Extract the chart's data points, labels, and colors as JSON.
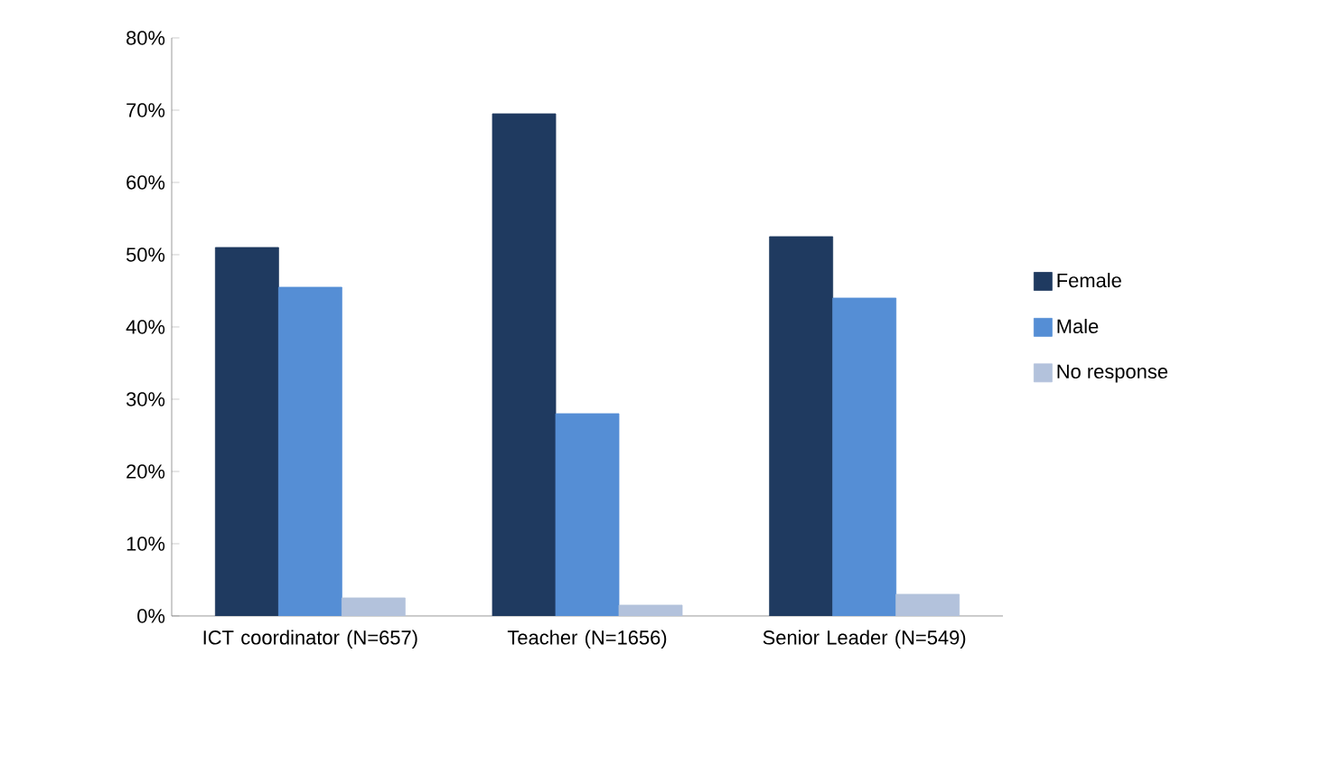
{
  "chart_data": {
    "type": "bar",
    "categories": [
      "ICT coordinator (N=657)",
      "Teacher (N=1656)",
      "Senior Leader (N=549)"
    ],
    "series": [
      {
        "name": "Female",
        "color": "#1f3a60",
        "values": [
          51,
          69.5,
          52.5
        ]
      },
      {
        "name": "Male",
        "color": "#558ed5",
        "values": [
          45.5,
          28,
          44
        ]
      },
      {
        "name": "No response",
        "color": "#b3c2dc",
        "values": [
          2.5,
          1.5,
          3
        ]
      }
    ],
    "ylim": [
      0,
      80
    ],
    "yticks": [
      {
        "value": 0,
        "label": "0%"
      },
      {
        "value": 10,
        "label": "10%"
      },
      {
        "value": 20,
        "label": "20%"
      },
      {
        "value": 30,
        "label": "30%"
      },
      {
        "value": 40,
        "label": "40%"
      },
      {
        "value": 50,
        "label": "50%"
      },
      {
        "value": 60,
        "label": "60%"
      },
      {
        "value": 70,
        "label": "70%"
      },
      {
        "value": 80,
        "label": "80%"
      }
    ],
    "grid": false,
    "legend": "right"
  }
}
